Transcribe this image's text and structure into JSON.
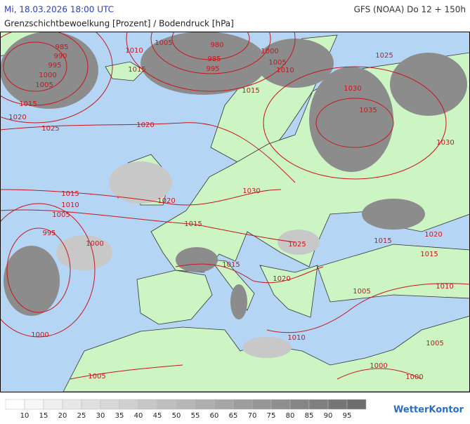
{
  "header": {
    "datetime": "Mi, 18.03.2026 18:00 UTC",
    "model": "GFS (NOAA) Do 12 + 150h",
    "title": "Grenzschichtbewoelkung [Prozent] / Bodendruck [hPa]"
  },
  "map": {
    "isobar_labels": [
      985,
      990,
      995,
      1000,
      1005,
      1015,
      1020,
      1025,
      1010,
      1005,
      1015,
      1020,
      980,
      985,
      995,
      1000,
      1005,
      1010,
      1015,
      1025,
      1030,
      1035,
      1030,
      1030,
      1020,
      1015,
      1010,
      1005,
      995,
      1000,
      1015,
      1025,
      1015,
      1020,
      1015,
      1015,
      1020,
      1005,
      1010,
      1000,
      1010,
      1005,
      1000,
      1000,
      1005
    ]
  },
  "legend": {
    "labels": [
      10,
      15,
      20,
      25,
      30,
      35,
      40,
      45,
      50,
      55,
      60,
      65,
      70,
      75,
      80,
      85,
      90,
      95
    ]
  },
  "logo": "WetterKontor"
}
